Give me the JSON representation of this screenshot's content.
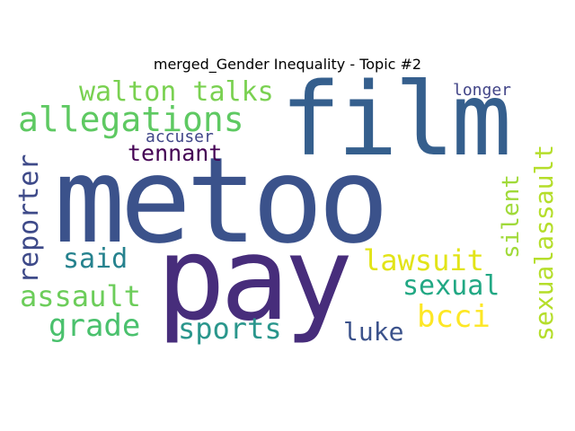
{
  "title": "merged_Gender Inequality - Topic #2",
  "words": [
    {
      "text": "metoo",
      "color": "#3b528b"
    },
    {
      "text": "film",
      "color": "#355f8d"
    },
    {
      "text": "pay",
      "color": "#472d7b"
    },
    {
      "text": "allegations",
      "color": "#5ec962"
    },
    {
      "text": "walton talks",
      "color": "#7ad151"
    },
    {
      "text": "reporter",
      "color": "#3e4a89"
    },
    {
      "text": "tennant",
      "color": "#440154"
    },
    {
      "text": "accuser",
      "color": "#404688"
    },
    {
      "text": "longer",
      "color": "#414487"
    },
    {
      "text": "sexualassault",
      "color": "#b5de2b"
    },
    {
      "text": "silent",
      "color": "#a0da39"
    },
    {
      "text": "said",
      "color": "#26828e"
    },
    {
      "text": "lawsuit",
      "color": "#e2e418"
    },
    {
      "text": "sexual",
      "color": "#22a884"
    },
    {
      "text": "assault",
      "color": "#6ccd5a"
    },
    {
      "text": "grade",
      "color": "#4ac16d"
    },
    {
      "text": "sports",
      "color": "#2a968c"
    },
    {
      "text": "luke",
      "color": "#3b528b"
    },
    {
      "text": "bcci",
      "color": "#fde725"
    }
  ]
}
